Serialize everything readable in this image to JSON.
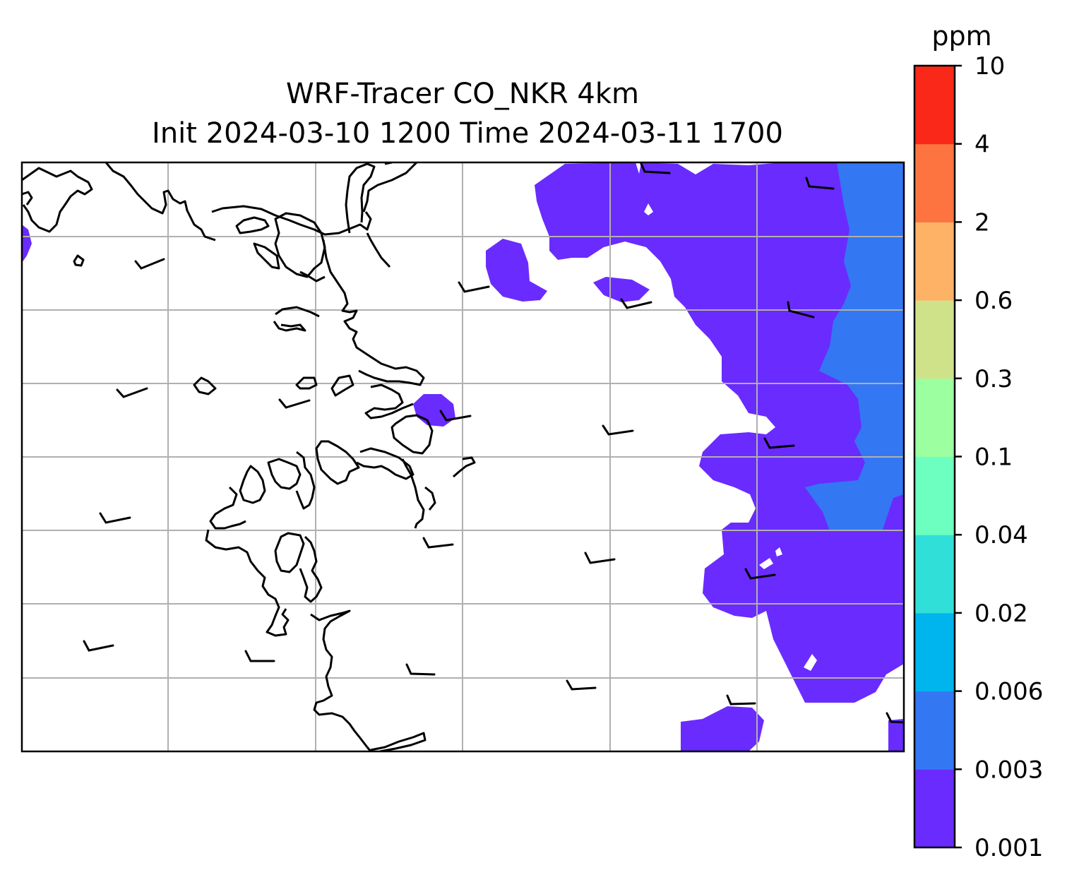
{
  "title_line1": "WRF-Tracer CO_NKR 4km",
  "title_line2": "Init 2024-03-10 1200 Time 2024-03-11 1700",
  "colorbar": {
    "unit": "ppm",
    "levels": [
      "0.001",
      "0.003",
      "0.006",
      "0.02",
      "0.04",
      "0.1",
      "0.3",
      "0.6",
      "2",
      "4",
      "10"
    ],
    "colors": [
      "#6a2bff",
      "#3377f3",
      "#00b4ee",
      "#30e0d8",
      "#6cffc0",
      "#9cffa0",
      "#cfe28a",
      "#fdb265",
      "#fd7440",
      "#fa2818"
    ]
  },
  "map": {
    "gridlines": true,
    "contour_colors_present": [
      "#6a2bff",
      "#3377f3"
    ]
  }
}
